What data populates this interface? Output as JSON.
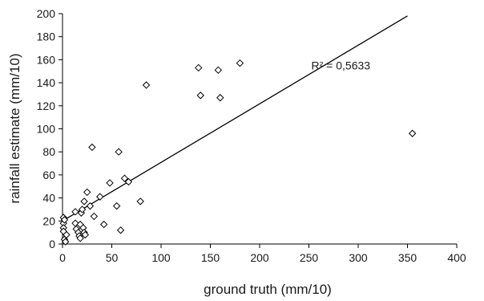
{
  "chart_data": {
    "type": "scatter",
    "xlabel": "ground truth (mm/10)",
    "ylabel": "rainfall estimate (mm/10)",
    "xlim": [
      0,
      400
    ],
    "ylim": [
      0,
      200
    ],
    "xticks": [
      0,
      50,
      100,
      150,
      200,
      250,
      300,
      350,
      400
    ],
    "yticks": [
      0,
      20,
      40,
      60,
      80,
      100,
      120,
      140,
      160,
      180,
      200
    ],
    "grid": false,
    "marker": "diamond-open",
    "points": [
      [
        1,
        23
      ],
      [
        1,
        18
      ],
      [
        1,
        14
      ],
      [
        1,
        11
      ],
      [
        2,
        21
      ],
      [
        2,
        4
      ],
      [
        3,
        2
      ],
      [
        4,
        8
      ],
      [
        13,
        28
      ],
      [
        13,
        18
      ],
      [
        14,
        13
      ],
      [
        16,
        10
      ],
      [
        17,
        7
      ],
      [
        18,
        5
      ],
      [
        18,
        17
      ],
      [
        19,
        27
      ],
      [
        20,
        30
      ],
      [
        21,
        14
      ],
      [
        22,
        10
      ],
      [
        23,
        8
      ],
      [
        22,
        37
      ],
      [
        25,
        45
      ],
      [
        28,
        33
      ],
      [
        30,
        84
      ],
      [
        32,
        24
      ],
      [
        38,
        41
      ],
      [
        42,
        17
      ],
      [
        48,
        53
      ],
      [
        55,
        33
      ],
      [
        57,
        80
      ],
      [
        59,
        12
      ],
      [
        63,
        57
      ],
      [
        67,
        54
      ],
      [
        79,
        37
      ],
      [
        85,
        138
      ],
      [
        138,
        153
      ],
      [
        140,
        129
      ],
      [
        158,
        151
      ],
      [
        160,
        127
      ],
      [
        180,
        157
      ],
      [
        355,
        96
      ]
    ],
    "trendline": {
      "x": [
        0,
        350
      ],
      "y": [
        20,
        198
      ]
    },
    "annotation": {
      "text": "R² = 0,5633",
      "x": 250,
      "y": 155
    }
  }
}
